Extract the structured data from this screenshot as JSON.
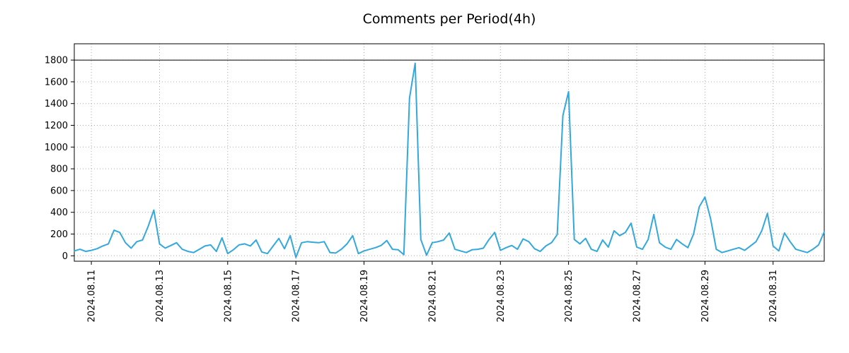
{
  "title": "Comments per Period(4h)",
  "colors": {
    "line": "#33a8dd",
    "ref_line": "#000000",
    "grid": "#aaaaaa",
    "axis": "#000000",
    "background": "#ffffff"
  },
  "chart_data": {
    "type": "line",
    "title": "Comments per Period(4h)",
    "xlabel": "",
    "ylabel": "",
    "interval_hours": 4,
    "ylim": [
      -50,
      1950
    ],
    "y_ticks": [
      0,
      200,
      400,
      600,
      800,
      1000,
      1200,
      1400,
      1600,
      1800
    ],
    "x_tick_labels": [
      "2024.08.11",
      "2024.08.13",
      "2024.08.15",
      "2024.08.17",
      "2024.08.19",
      "2024.08.21",
      "2024.08.23",
      "2024.08.25",
      "2024.08.27",
      "2024.08.29",
      "2024.08.31"
    ],
    "x_tick_first_index": 3,
    "x_tick_step": 12,
    "ref_line_y": 1800,
    "grid": "dotted",
    "legend": "none",
    "series": [
      {
        "name": "comments",
        "max_value": 1771,
        "values": [
          45,
          60,
          40,
          50,
          65,
          90,
          110,
          235,
          215,
          120,
          70,
          130,
          145,
          270,
          420,
          110,
          70,
          95,
          120,
          60,
          40,
          30,
          60,
          90,
          100,
          40,
          165,
          20,
          55,
          100,
          110,
          90,
          145,
          35,
          20,
          90,
          160,
          65,
          185,
          -15,
          120,
          130,
          125,
          120,
          130,
          30,
          25,
          60,
          110,
          185,
          20,
          45,
          60,
          75,
          95,
          140,
          60,
          55,
          10,
          1450,
          1771,
          150,
          5,
          120,
          130,
          145,
          210,
          60,
          45,
          30,
          55,
          60,
          70,
          150,
          215,
          50,
          75,
          95,
          60,
          155,
          130,
          65,
          40,
          90,
          120,
          195,
          1290,
          1510,
          150,
          110,
          160,
          60,
          40,
          145,
          80,
          230,
          185,
          215,
          300,
          80,
          60,
          150,
          380,
          120,
          80,
          60,
          150,
          110,
          75,
          200,
          450,
          540,
          340,
          60,
          30,
          45,
          60,
          75,
          50,
          90,
          130,
          230,
          390,
          90,
          45,
          210,
          130,
          60,
          45,
          30,
          60,
          100,
          220
        ]
      }
    ]
  }
}
